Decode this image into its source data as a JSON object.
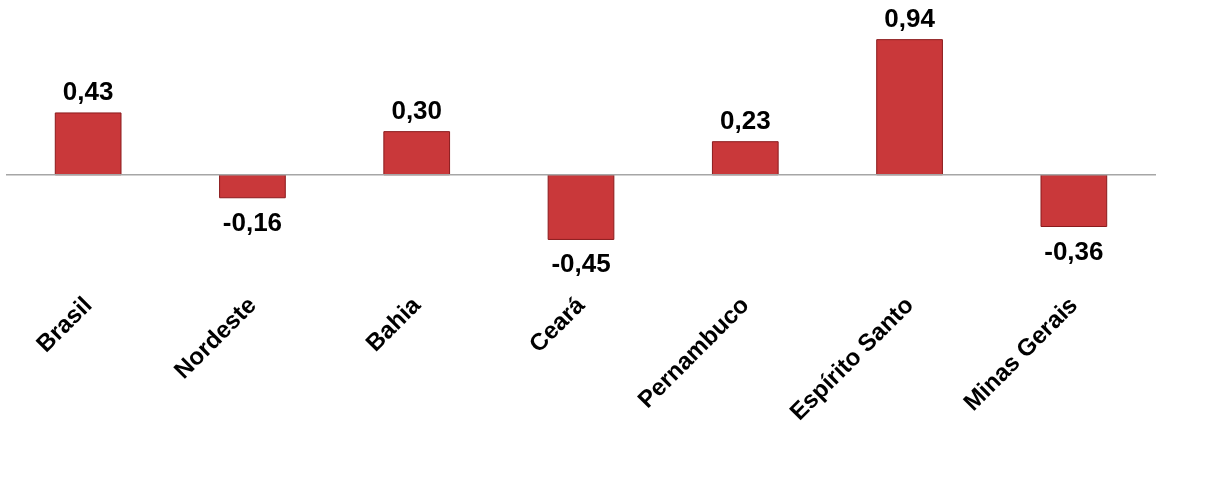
{
  "chart_data": {
    "type": "bar",
    "categories": [
      "Brasil",
      "Nordeste",
      "Bahia",
      "Ceará",
      "Pernambuco",
      "Espírito Santo",
      "Minas Gerais"
    ],
    "values": [
      0.43,
      -0.16,
      0.3,
      -0.45,
      0.23,
      0.94,
      -0.36
    ],
    "value_labels": [
      "0,43",
      "-0,16",
      "0,30",
      "-0,45",
      "0,23",
      "0,94",
      "-0,36"
    ],
    "color": "#c9383a",
    "grid": false
  }
}
